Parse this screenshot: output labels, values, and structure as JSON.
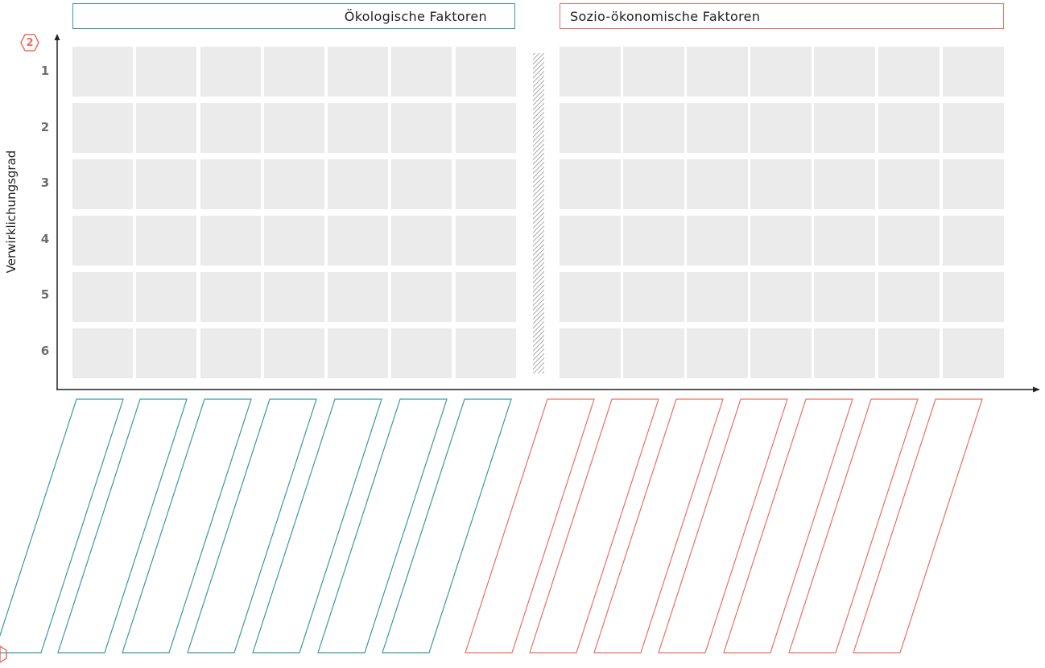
{
  "headers": {
    "ecological": "Ökologische Faktoren",
    "socio_economic": "Sozio-ökonomische Faktoren"
  },
  "y_axis": {
    "label": "Verwirklichungsgrad",
    "levels": [
      "1",
      "2",
      "3",
      "4",
      "5",
      "6"
    ]
  },
  "step_badge": "2",
  "colors": {
    "ecological": "#3a9a9a",
    "socio_economic": "#ea6f63",
    "cell_fill": "#ebebeb",
    "axis": "#222222",
    "level_text": "#6e6e6e"
  },
  "groups": [
    {
      "key": "ecological",
      "columns": 7
    },
    {
      "key": "socio_economic",
      "columns": 7
    }
  ]
}
